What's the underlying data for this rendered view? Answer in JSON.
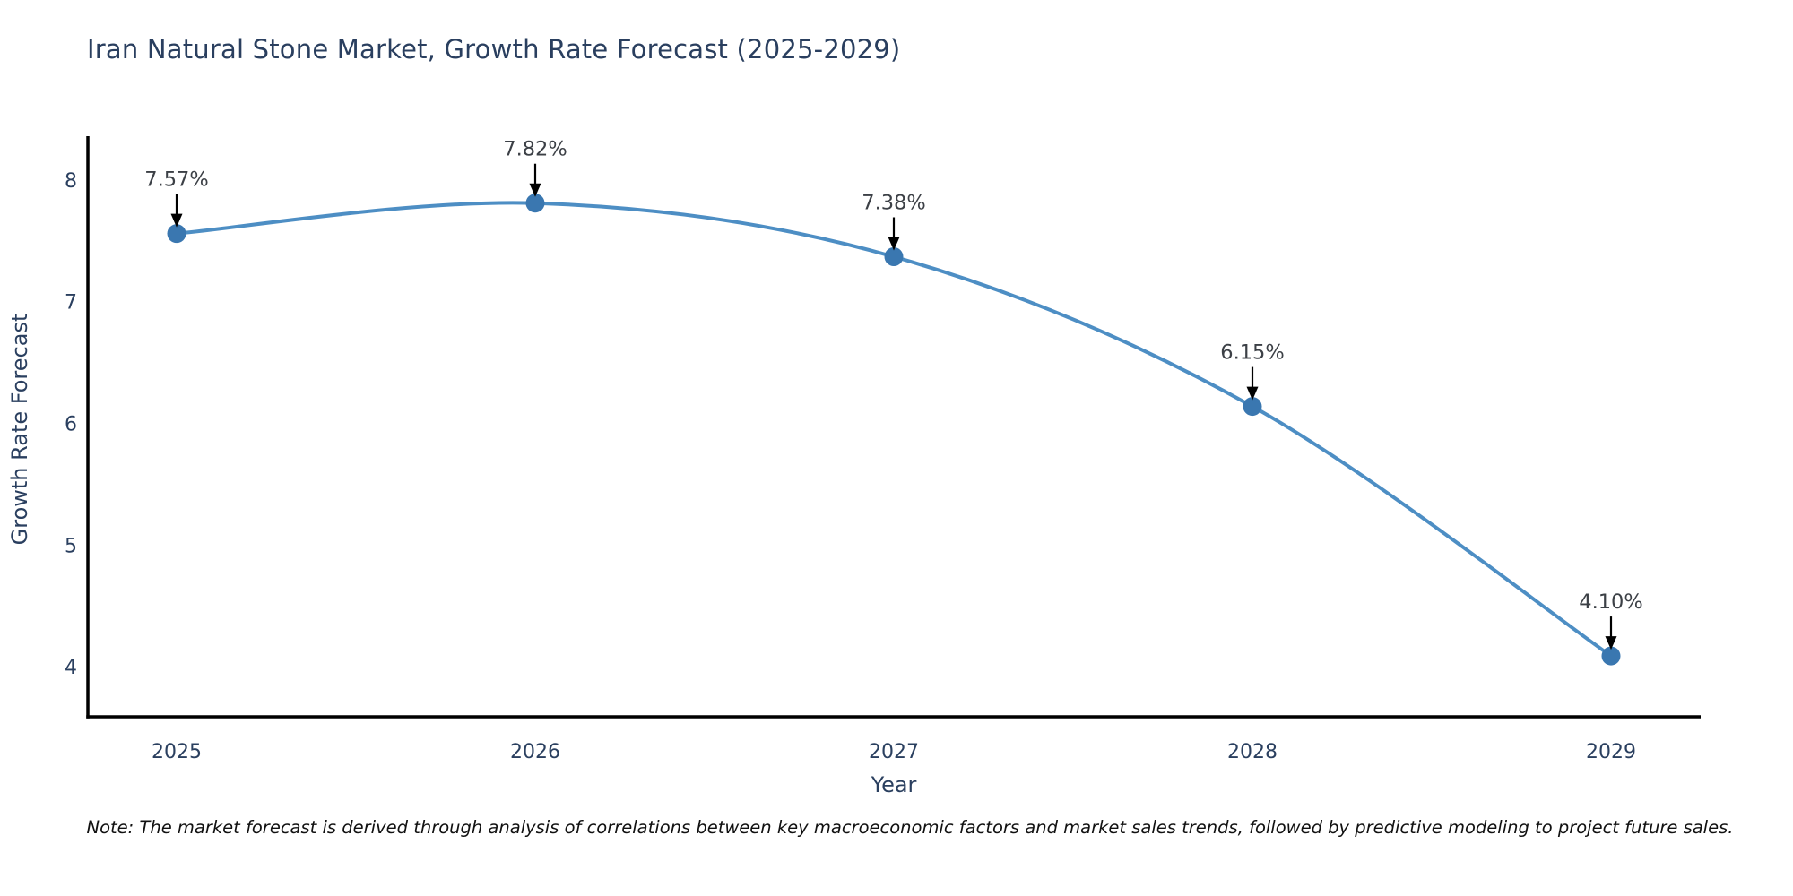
{
  "title": "Iran Natural Stone Market, Growth Rate Forecast (2025-2029)",
  "note": "Note: The market forecast is derived through analysis of correlations between key macroeconomic factors and market sales trends, followed by predictive modeling to project future sales.",
  "chart_data": {
    "type": "line",
    "line_shape": "spline",
    "title": "Iran Natural Stone Market, Growth Rate Forecast (2025-2029)",
    "xlabel": "Year",
    "ylabel": "Growth Rate Forecast",
    "x": [
      2025,
      2026,
      2027,
      2028,
      2029
    ],
    "values": [
      7.57,
      7.82,
      7.38,
      6.15,
      4.1
    ],
    "point_labels": [
      "7.57%",
      "7.82%",
      "7.38%",
      "6.15%",
      "4.10%"
    ],
    "x_tick_labels": [
      "2025",
      "2026",
      "2027",
      "2028",
      "2029"
    ],
    "y_ticks": [
      8,
      7,
      6,
      5,
      4
    ],
    "xlim": [
      2024.7525,
      2029.25
    ],
    "ylim": [
      3.6,
      8.37
    ],
    "grid": false,
    "legend_position": "none",
    "colors": {
      "line": "#4D8EC4",
      "marker": "#3A77B0",
      "axis": "#000000",
      "axis_text": "#2a3f5f",
      "annotation_text": "#3c4046",
      "annotation_arrow": "#000000",
      "title_text": "#2a3f5f",
      "background": "#ffffff"
    }
  }
}
